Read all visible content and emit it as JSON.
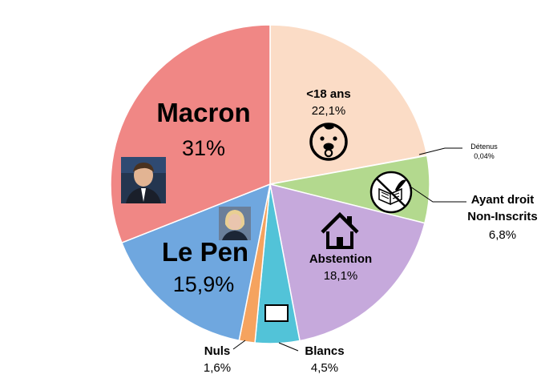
{
  "chart_data": {
    "type": "pie",
    "slices": [
      {
        "label": "<18 ans",
        "value": 22.1,
        "display": "22,1%",
        "color": "#fbdcc6"
      },
      {
        "label": "Détenus",
        "value": 0.04,
        "display": "0,04%",
        "color": "#e9e9e9"
      },
      {
        "label": "Ayant droit Non-Inscrits",
        "label_line1": "Ayant droit",
        "label_line2": "Non-Inscrits",
        "value": 6.8,
        "display": "6,8%",
        "color": "#b3d98e"
      },
      {
        "label": "Abstention",
        "value": 18.1,
        "display": "18,1%",
        "color": "#c6a9dc"
      },
      {
        "label": "Blancs",
        "value": 4.5,
        "display": "4,5%",
        "color": "#52c3d8"
      },
      {
        "label": "Nuls",
        "value": 1.6,
        "display": "1,6%",
        "color": "#f5a35f"
      },
      {
        "label": "Le Pen",
        "value": 15.9,
        "display": "15,9%",
        "color": "#6fa7df"
      },
      {
        "label": "Macron",
        "value": 31,
        "display": "31%",
        "color": "#f08785"
      }
    ]
  },
  "icons": {
    "minor": "baby-icon",
    "non_registered": "no-voting-book-icon",
    "abstention": "house-icon",
    "blank": "blank-ballot-icon",
    "macron": "macron-photo",
    "le_pen": "le-pen-photo"
  }
}
